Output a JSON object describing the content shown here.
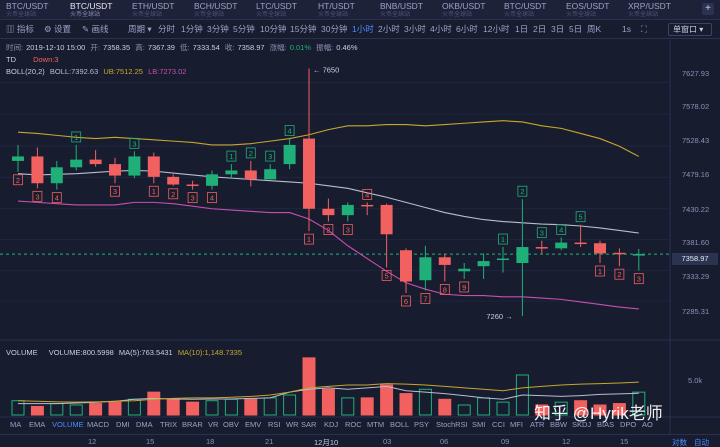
{
  "tickers": [
    {
      "symbol": "BTC/USDT",
      "sub": "火币全球站",
      "active": false
    },
    {
      "symbol": "BTC/USDT",
      "sub": "火币全球站",
      "active": true
    },
    {
      "symbol": "ETH/USDT",
      "sub": "火币全球站",
      "active": false
    },
    {
      "symbol": "BCH/USDT",
      "sub": "火币全球站",
      "active": false
    },
    {
      "symbol": "LTC/USDT",
      "sub": "火币全球站",
      "active": false
    },
    {
      "symbol": "HT/USDT",
      "sub": "火币全球站",
      "active": false
    },
    {
      "symbol": "BNB/USDT",
      "sub": "火币全球站",
      "active": false
    },
    {
      "symbol": "OKB/USDT",
      "sub": "火币全球站",
      "active": false
    },
    {
      "symbol": "BTC/USDT",
      "sub": "火币全球站",
      "active": false
    },
    {
      "symbol": "EOS/USDT",
      "sub": "火币全球站",
      "active": false
    },
    {
      "symbol": "XRP/USDT",
      "sub": "火币全球站",
      "active": false
    }
  ],
  "ticker_add": "+",
  "toolbar": {
    "indicators": "指标",
    "settings": "设置",
    "draw": "画线",
    "period": "周期",
    "intervals": [
      "分时",
      "1分钟",
      "3分钟",
      "5分钟",
      "10分钟",
      "15分钟",
      "30分钟",
      "1小时",
      "2小时",
      "3小时",
      "4小时",
      "6小时",
      "12小时",
      "1日",
      "2日",
      "3日",
      "5日",
      "周K"
    ],
    "active_interval": "1小时",
    "refresh": "1s",
    "window": "单窗口"
  },
  "info": {
    "time_label": "时间:",
    "time": "2019-12-10 15:00",
    "open_label": "开:",
    "open": "7358.35",
    "high_label": "高:",
    "high": "7367.39",
    "low_label": "低:",
    "low": "7333.54",
    "close_label": "收:",
    "close": "7358.97",
    "change_label": "涨幅:",
    "change": "0.01%",
    "amp_label": "振幅:",
    "amp": "0.46%"
  },
  "td": {
    "label": "TD",
    "value": "Down:3"
  },
  "boll": {
    "label": "BOLL(20,2)",
    "mid": "BOLL:7392.63",
    "up": "UB:7512.25",
    "lb": "LB:7273.02"
  },
  "volume": {
    "label": "VOLUME",
    "vol": "VOLUME:800.5998",
    "ma5": "MA(5):763.5431",
    "ma10": "MA(10):1,148.7335",
    "axis": "5.0k"
  },
  "price_axis": [
    "7627.93",
    "7578.02",
    "7528.43",
    "7479.16",
    "7430.22",
    "7381.60",
    "7333.29",
    "7285.31"
  ],
  "current_price": "7358.97",
  "annotations": {
    "high": "← 7650",
    "low": "7260 →"
  },
  "indicator_tabs": [
    "MA",
    "EMA",
    "VOLUME",
    "MACD",
    "DMI",
    "DMA",
    "TRIX",
    "BRAR",
    "VR",
    "OBV",
    "EMV",
    "RSI",
    "WR",
    "SAR",
    "KDJ",
    "ROC",
    "MTM",
    "BOLL",
    "PSY",
    "StochRSI",
    "SMI",
    "CCI",
    "MFI",
    "ATR",
    "BBW",
    "SKDJ",
    "BIAS",
    "DPO",
    "AO"
  ],
  "active_indicator": "VOLUME",
  "dates": [
    "12",
    "15",
    "18",
    "21",
    "12月10",
    "03",
    "06",
    "09",
    "12",
    "15"
  ],
  "axis_modes": {
    "log": "对数",
    "auto": "自动"
  },
  "watermark": "知乎 @Hyrik老师",
  "colors": {
    "up": "#1fb07a",
    "down": "#f0615f",
    "boll_up": "#c8a62e",
    "boll_mid": "#b9bdd0",
    "boll_lb": "#c64fb0",
    "accent": "#4c8dff",
    "background": "#181c2f"
  },
  "chart_data": {
    "type": "candlestick",
    "y_range": [
      7240,
      7660
    ],
    "candles": [
      {
        "o": 7505,
        "h": 7530,
        "l": 7488,
        "c": 7512,
        "td": "2",
        "tdColor": "down",
        "tdPos": "below"
      },
      {
        "o": 7512,
        "h": 7526,
        "l": 7462,
        "c": 7470,
        "td": "3",
        "tdColor": "down",
        "tdPos": "below"
      },
      {
        "o": 7470,
        "h": 7505,
        "l": 7460,
        "c": 7495,
        "td": "4",
        "tdColor": "down",
        "tdPos": "below"
      },
      {
        "o": 7495,
        "h": 7530,
        "l": 7490,
        "c": 7507,
        "td": "1",
        "tdColor": "up",
        "tdPos": "above"
      },
      {
        "o": 7507,
        "h": 7522,
        "l": 7496,
        "c": 7500,
        "td": "",
        "tdColor": "",
        "tdPos": ""
      },
      {
        "o": 7500,
        "h": 7510,
        "l": 7470,
        "c": 7482,
        "td": "3",
        "tdColor": "down",
        "tdPos": "below"
      },
      {
        "o": 7482,
        "h": 7520,
        "l": 7478,
        "c": 7512,
        "td": "3",
        "tdColor": "up",
        "tdPos": "above"
      },
      {
        "o": 7512,
        "h": 7518,
        "l": 7470,
        "c": 7480,
        "td": "1",
        "tdColor": "down",
        "tdPos": "below"
      },
      {
        "o": 7480,
        "h": 7484,
        "l": 7466,
        "c": 7468,
        "td": "2",
        "tdColor": "down",
        "tdPos": "below"
      },
      {
        "o": 7468,
        "h": 7474,
        "l": 7460,
        "c": 7466,
        "td": "3",
        "tdColor": "down",
        "tdPos": "below"
      },
      {
        "o": 7466,
        "h": 7490,
        "l": 7460,
        "c": 7484,
        "td": "4",
        "tdColor": "down",
        "tdPos": "below"
      },
      {
        "o": 7484,
        "h": 7500,
        "l": 7478,
        "c": 7490,
        "td": "1",
        "tdColor": "up",
        "tdPos": "above"
      },
      {
        "o": 7490,
        "h": 7505,
        "l": 7465,
        "c": 7476,
        "td": "2",
        "tdColor": "up",
        "tdPos": "above"
      },
      {
        "o": 7476,
        "h": 7500,
        "l": 7476,
        "c": 7492,
        "td": "3",
        "tdColor": "up",
        "tdPos": "above"
      },
      {
        "o": 7500,
        "h": 7540,
        "l": 7492,
        "c": 7530,
        "td": "4",
        "tdColor": "up",
        "tdPos": "above"
      },
      {
        "o": 7540,
        "h": 7650,
        "l": 7395,
        "c": 7430,
        "td": "1",
        "tdColor": "down",
        "tdPos": "below"
      },
      {
        "o": 7430,
        "h": 7446,
        "l": 7410,
        "c": 7420,
        "td": "2",
        "tdColor": "down",
        "tdPos": "below"
      },
      {
        "o": 7420,
        "h": 7440,
        "l": 7410,
        "c": 7436,
        "td": "3",
        "tdColor": "down",
        "tdPos": "below"
      },
      {
        "o": 7436,
        "h": 7440,
        "l": 7420,
        "c": 7434,
        "td": "4",
        "tdColor": "down",
        "tdPos": "above"
      },
      {
        "o": 7436,
        "h": 7438,
        "l": 7338,
        "c": 7390,
        "td": "5",
        "tdColor": "down",
        "tdPos": "below"
      },
      {
        "o": 7365,
        "h": 7368,
        "l": 7298,
        "c": 7316,
        "td": "6",
        "tdColor": "down",
        "tdPos": "below"
      },
      {
        "o": 7318,
        "h": 7372,
        "l": 7302,
        "c": 7354,
        "td": "7",
        "tdColor": "down",
        "tdPos": "below"
      },
      {
        "o": 7354,
        "h": 7360,
        "l": 7316,
        "c": 7342,
        "td": "8",
        "tdColor": "down",
        "tdPos": "below"
      },
      {
        "o": 7332,
        "h": 7345,
        "l": 7320,
        "c": 7336,
        "td": "9",
        "tdColor": "down",
        "tdPos": "below"
      },
      {
        "o": 7340,
        "h": 7360,
        "l": 7320,
        "c": 7348,
        "td": "",
        "tdColor": "",
        "tdPos": ""
      },
      {
        "o": 7350,
        "h": 7370,
        "l": 7330,
        "c": 7352,
        "td": "1",
        "tdColor": "up",
        "tdPos": "above"
      },
      {
        "o": 7345,
        "h": 7445,
        "l": 7262,
        "c": 7370,
        "td": "2",
        "tdColor": "up",
        "tdPos": "above"
      },
      {
        "o": 7370,
        "h": 7380,
        "l": 7360,
        "c": 7368,
        "td": "3",
        "tdColor": "up",
        "tdPos": "above"
      },
      {
        "o": 7368,
        "h": 7385,
        "l": 7365,
        "c": 7377,
        "td": "4",
        "tdColor": "up",
        "tdPos": "above"
      },
      {
        "o": 7377,
        "h": 7405,
        "l": 7370,
        "c": 7375,
        "td": "5",
        "tdColor": "up",
        "tdPos": "above"
      },
      {
        "o": 7376,
        "h": 7380,
        "l": 7345,
        "c": 7360,
        "td": "1",
        "tdColor": "down",
        "tdPos": "below"
      },
      {
        "o": 7361,
        "h": 7368,
        "l": 7340,
        "c": 7359,
        "td": "2",
        "tdColor": "down",
        "tdPos": "below"
      },
      {
        "o": 7358,
        "h": 7367,
        "l": 7333,
        "c": 7359,
        "td": "3",
        "tdColor": "down",
        "tdPos": "below"
      }
    ],
    "boll_upper": [
      7550,
      7548,
      7545,
      7542,
      7540,
      7542,
      7540,
      7538,
      7536,
      7534,
      7530,
      7530,
      7532,
      7536,
      7540,
      7546,
      7554,
      7560,
      7560,
      7562,
      7562,
      7560,
      7562,
      7564,
      7566,
      7568,
      7566,
      7560,
      7556,
      7548,
      7540,
      7528,
      7512
    ],
    "boll_mid": [
      7485,
      7483,
      7484,
      7485,
      7487,
      7489,
      7490,
      7489,
      7486,
      7483,
      7480,
      7478,
      7476,
      7474,
      7472,
      7470,
      7466,
      7462,
      7455,
      7448,
      7440,
      7432,
      7424,
      7418,
      7413,
      7410,
      7408,
      7406,
      7405,
      7403,
      7400,
      7396,
      7392
    ],
    "boll_lower": [
      7442,
      7440,
      7438,
      7436,
      7436,
      7436,
      7440,
      7440,
      7438,
      7434,
      7430,
      7428,
      7426,
      7424,
      7424,
      7414,
      7396,
      7372,
      7352,
      7332,
      7314,
      7304,
      7296,
      7294,
      7294,
      7292,
      7292,
      7290,
      7288,
      7284,
      7280,
      7276,
      7273
    ],
    "volumes": [
      0.5,
      0.3,
      0.4,
      0.35,
      0.4,
      0.45,
      0.55,
      0.8,
      0.55,
      0.45,
      0.5,
      0.55,
      0.55,
      0.6,
      0.7,
      2.0,
      0.9,
      0.6,
      0.6,
      1.05,
      0.75,
      0.9,
      0.55,
      0.35,
      0.6,
      0.45,
      1.4,
      0.35,
      0.45,
      0.5,
      0.35,
      0.4,
      0.8
    ],
    "vol_ma5": [
      0.4,
      0.4,
      0.4,
      0.42,
      0.44,
      0.48,
      0.55,
      0.58,
      0.56,
      0.55,
      0.56,
      0.56,
      0.58,
      0.6,
      0.8,
      0.9,
      0.95,
      0.9,
      0.95,
      1.0,
      0.85,
      0.8,
      0.75,
      0.68,
      0.6,
      0.55,
      0.7,
      0.68,
      0.65,
      0.68,
      0.72,
      0.74,
      0.76
    ],
    "vol_ma10": [
      0.5,
      0.48,
      0.46,
      0.45,
      0.46,
      0.48,
      0.5,
      0.55,
      0.58,
      0.6,
      0.6,
      0.62,
      0.65,
      0.7,
      0.8,
      0.95,
      1.0,
      1.05,
      1.05,
      1.1,
      1.08,
      1.05,
      1.0,
      0.95,
      0.9,
      0.85,
      0.95,
      1.0,
      1.05,
      1.08,
      1.1,
      1.12,
      1.15
    ],
    "vol_max": 2.1
  }
}
